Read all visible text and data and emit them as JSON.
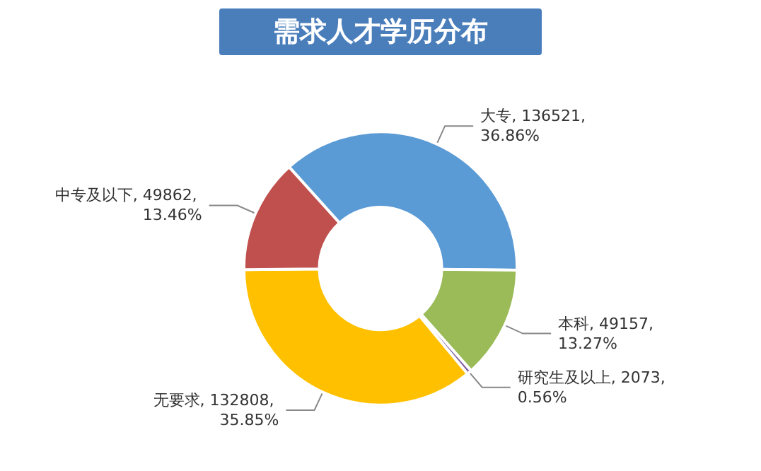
{
  "chart_data": {
    "type": "donut",
    "title": "需求人才学历分布",
    "categories": [
      "大专",
      "本科",
      "研究生及以上",
      "无要求",
      "中专及以下"
    ],
    "values": [
      136521,
      49157,
      2073,
      132808,
      49862
    ],
    "value_labels": [
      "136521, 36.86%",
      "49157, 13.27%",
      "2073, 0.56%",
      "132808, 35.85%",
      "49862, 13.46%"
    ],
    "colors": [
      "#5b9bd5",
      "#9bbb59",
      "#8064a2",
      "#ffc000",
      "#c0504d"
    ],
    "legend": false
  }
}
